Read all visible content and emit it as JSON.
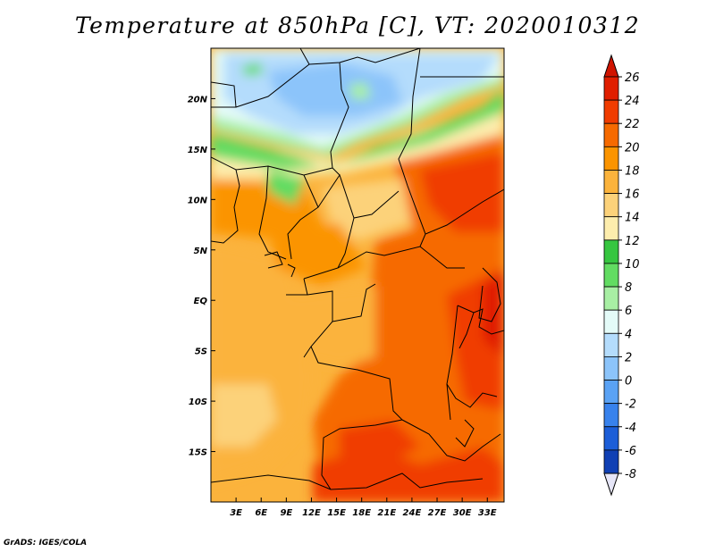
{
  "title": "Temperature at 850hPa [C], VT: 2020010312",
  "footer": "GrADS: IGES/COLA",
  "map": {
    "lon_range": [
      0,
      35
    ],
    "lat_range": [
      -20,
      25
    ],
    "lon_ticks": [
      {
        "value": 3,
        "label": "3E"
      },
      {
        "value": 6,
        "label": "6E"
      },
      {
        "value": 9,
        "label": "9E"
      },
      {
        "value": 12,
        "label": "12E"
      },
      {
        "value": 15,
        "label": "15E"
      },
      {
        "value": 18,
        "label": "18E"
      },
      {
        "value": 21,
        "label": "21E"
      },
      {
        "value": 24,
        "label": "24E"
      },
      {
        "value": 27,
        "label": "27E"
      },
      {
        "value": 30,
        "label": "30E"
      },
      {
        "value": 33,
        "label": "33E"
      }
    ],
    "lat_ticks": [
      {
        "value": 20,
        "label": "20N"
      },
      {
        "value": 15,
        "label": "15N"
      },
      {
        "value": 10,
        "label": "10N"
      },
      {
        "value": 5,
        "label": "5N"
      },
      {
        "value": 0,
        "label": "EQ"
      },
      {
        "value": -5,
        "label": "5S"
      },
      {
        "value": -10,
        "label": "10S"
      },
      {
        "value": -15,
        "label": "15S"
      }
    ]
  },
  "colorbar": {
    "levels": [
      {
        "label": "26",
        "color": "#e01e00"
      },
      {
        "label": "24",
        "color": "#f03c00"
      },
      {
        "label": "22",
        "color": "#f66a00"
      },
      {
        "label": "20",
        "color": "#fb9400"
      },
      {
        "label": "18",
        "color": "#fbb33c"
      },
      {
        "label": "16",
        "color": "#fcd27a"
      },
      {
        "label": "14",
        "color": "#fdedad"
      },
      {
        "label": "12",
        "color": "#36c640"
      },
      {
        "label": "10",
        "color": "#62dc62"
      },
      {
        "label": "8",
        "color": "#a8efa4"
      },
      {
        "label": "6",
        "color": "#e4fbf8"
      },
      {
        "label": "4",
        "color": "#b4dcfc"
      },
      {
        "label": "2",
        "color": "#8cc4fa"
      },
      {
        "label": "0",
        "color": "#5aa2f4"
      },
      {
        "label": "-2",
        "color": "#3882ec"
      },
      {
        "label": "-4",
        "color": "#1c5ed8"
      },
      {
        "label": "-6",
        "color": "#1040b4"
      },
      {
        "label": "-8",
        "color": "#081878"
      }
    ],
    "top_arrow_color": "#d01400",
    "bottom_arrow_color": "#e6e6f8"
  }
}
